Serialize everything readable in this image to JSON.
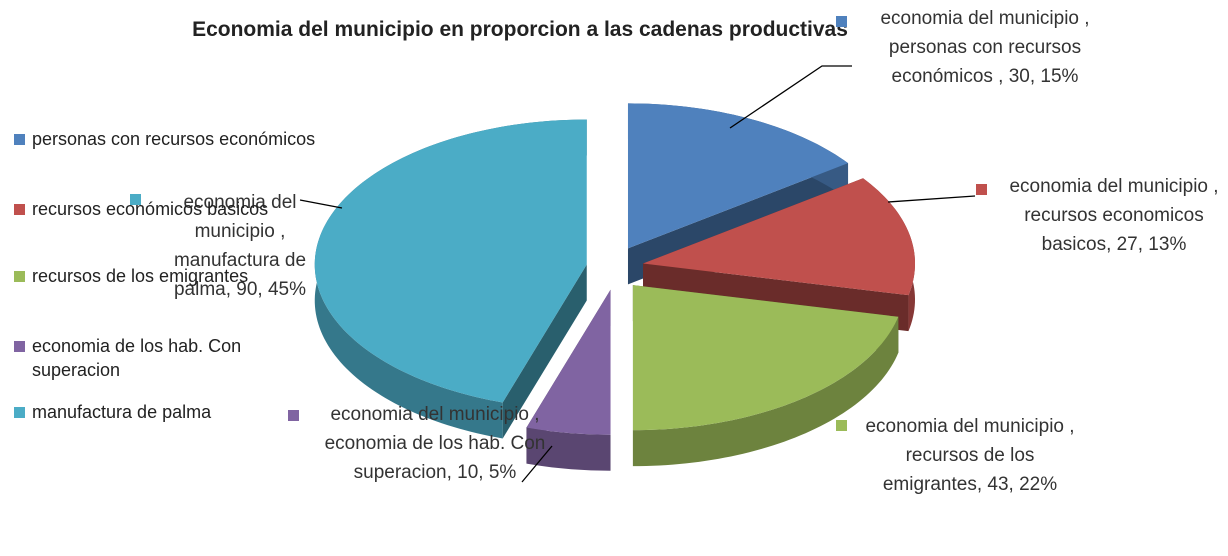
{
  "chart_data": {
    "type": "pie",
    "title": "Economia del municipio en proporcion a las cadenas productivas",
    "categories": [
      "personas con recursos económicos",
      "recursos económicos basicos",
      "recursos de los emigrantes",
      "economia de los hab. Con superacion",
      "manufactura de palma"
    ],
    "values": [
      30,
      27,
      43,
      10,
      90
    ],
    "value_labels": [
      "economia del municipio , personas con recursos económicos , 30, 15%",
      "economia del municipio , recursos economicos basicos, 27, 13%",
      "economia del municipio , recursos de los emigrantes, 43, 22%",
      "economia del municipio , economia de los hab. Con superacion, 10, 5%",
      "economia del municipio , manufactura de palma, 90, 45%"
    ],
    "colors": [
      "#4f81bd",
      "#c0504d",
      "#9bbb59",
      "#8064a2",
      "#4bacc6"
    ],
    "legend": "left"
  }
}
